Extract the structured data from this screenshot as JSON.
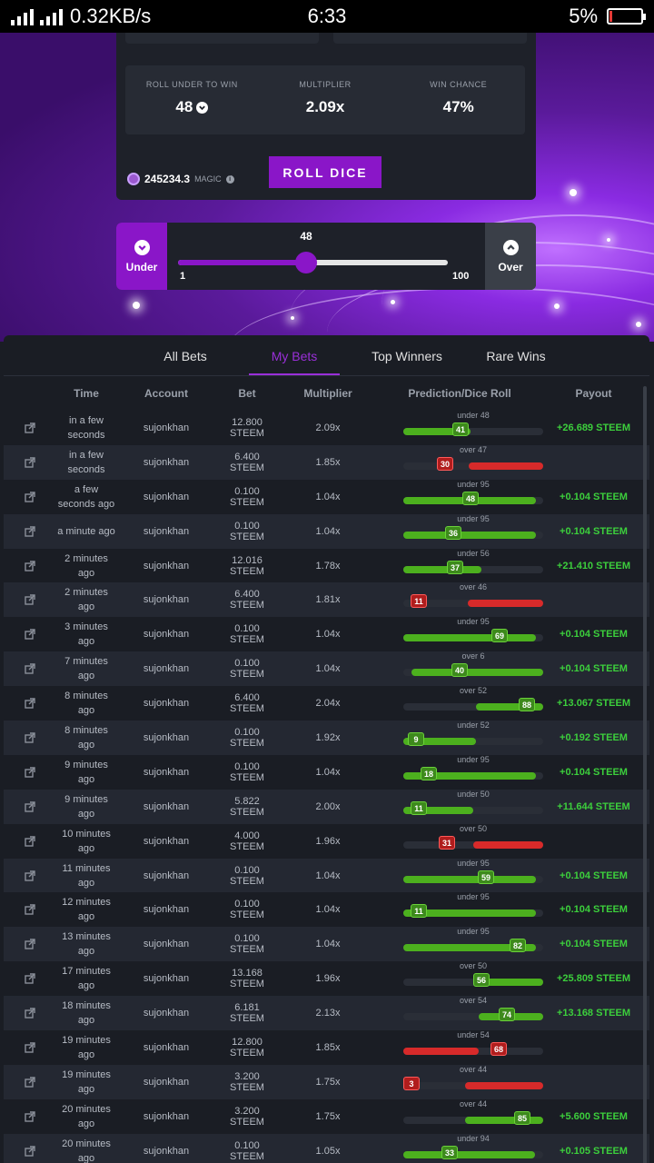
{
  "status_bar": {
    "speed": "0.32KB/s",
    "time": "6:33",
    "battery": "5%"
  },
  "game": {
    "roll_under_label": "ROLL UNDER TO WIN",
    "roll_under_value": "48",
    "multiplier_label": "MULTIPLIER",
    "multiplier_value": "2.09x",
    "win_chance_label": "WIN CHANCE",
    "win_chance_value": "47%",
    "balance": "245234.3",
    "balance_unit": "MAGIC",
    "roll_button": "ROLL DICE"
  },
  "slider": {
    "under_label": "Under",
    "over_label": "Over",
    "value": 48,
    "value_label": "48",
    "min_label": "1",
    "max_label": "100",
    "min": 1,
    "max": 100
  },
  "tabs": [
    "All Bets",
    "My Bets",
    "Top Winners",
    "Rare Wins"
  ],
  "active_tab": 1,
  "columns": [
    "Time",
    "Account",
    "Bet",
    "Multiplier",
    "Prediction/Dice Roll",
    "Payout"
  ],
  "rows": [
    {
      "time": "in a few seconds",
      "account": "sujonkhan",
      "bet": "12.800 STEEM",
      "mult": "2.09x",
      "pred": "under 48",
      "dir": "under",
      "target": 48,
      "roll": 41,
      "win": true,
      "payout": "+26.689 STEEM"
    },
    {
      "time": "in a few seconds",
      "account": "sujonkhan",
      "bet": "6.400 STEEM",
      "mult": "1.85x",
      "pred": "over 47",
      "dir": "over",
      "target": 47,
      "roll": 30,
      "win": false,
      "payout": ""
    },
    {
      "time": "a few seconds ago",
      "account": "sujonkhan",
      "bet": "0.100 STEEM",
      "mult": "1.04x",
      "pred": "under 95",
      "dir": "under",
      "target": 95,
      "roll": 48,
      "win": true,
      "payout": "+0.104 STEEM"
    },
    {
      "time": "a minute ago",
      "account": "sujonkhan",
      "bet": "0.100 STEEM",
      "mult": "1.04x",
      "pred": "under 95",
      "dir": "under",
      "target": 95,
      "roll": 36,
      "win": true,
      "payout": "+0.104 STEEM"
    },
    {
      "time": "2 minutes ago",
      "account": "sujonkhan",
      "bet": "12.016 STEEM",
      "mult": "1.78x",
      "pred": "under 56",
      "dir": "under",
      "target": 56,
      "roll": 37,
      "win": true,
      "payout": "+21.410 STEEM"
    },
    {
      "time": "2 minutes ago",
      "account": "sujonkhan",
      "bet": "6.400 STEEM",
      "mult": "1.81x",
      "pred": "over 46",
      "dir": "over",
      "target": 46,
      "roll": 11,
      "win": false,
      "payout": ""
    },
    {
      "time": "3 minutes ago",
      "account": "sujonkhan",
      "bet": "0.100 STEEM",
      "mult": "1.04x",
      "pred": "under 95",
      "dir": "under",
      "target": 95,
      "roll": 69,
      "win": true,
      "payout": "+0.104 STEEM"
    },
    {
      "time": "7 minutes ago",
      "account": "sujonkhan",
      "bet": "0.100 STEEM",
      "mult": "1.04x",
      "pred": "over 6",
      "dir": "over",
      "target": 6,
      "roll": 40,
      "win": true,
      "payout": "+0.104 STEEM"
    },
    {
      "time": "8 minutes ago",
      "account": "sujonkhan",
      "bet": "6.400 STEEM",
      "mult": "2.04x",
      "pred": "over 52",
      "dir": "over",
      "target": 52,
      "roll": 88,
      "win": true,
      "payout": "+13.067 STEEM"
    },
    {
      "time": "8 minutes ago",
      "account": "sujonkhan",
      "bet": "0.100 STEEM",
      "mult": "1.92x",
      "pred": "under 52",
      "dir": "under",
      "target": 52,
      "roll": 9,
      "win": true,
      "payout": "+0.192 STEEM"
    },
    {
      "time": "9 minutes ago",
      "account": "sujonkhan",
      "bet": "0.100 STEEM",
      "mult": "1.04x",
      "pred": "under 95",
      "dir": "under",
      "target": 95,
      "roll": 18,
      "win": true,
      "payout": "+0.104 STEEM"
    },
    {
      "time": "9 minutes ago",
      "account": "sujonkhan",
      "bet": "5.822 STEEM",
      "mult": "2.00x",
      "pred": "under 50",
      "dir": "under",
      "target": 50,
      "roll": 11,
      "win": true,
      "payout": "+11.644 STEEM"
    },
    {
      "time": "10 minutes ago",
      "account": "sujonkhan",
      "bet": "4.000 STEEM",
      "mult": "1.96x",
      "pred": "over 50",
      "dir": "over",
      "target": 50,
      "roll": 31,
      "win": false,
      "payout": ""
    },
    {
      "time": "11 minutes ago",
      "account": "sujonkhan",
      "bet": "0.100 STEEM",
      "mult": "1.04x",
      "pred": "under 95",
      "dir": "under",
      "target": 95,
      "roll": 59,
      "win": true,
      "payout": "+0.104 STEEM"
    },
    {
      "time": "12 minutes ago",
      "account": "sujonkhan",
      "bet": "0.100 STEEM",
      "mult": "1.04x",
      "pred": "under 95",
      "dir": "under",
      "target": 95,
      "roll": 11,
      "win": true,
      "payout": "+0.104 STEEM"
    },
    {
      "time": "13 minutes ago",
      "account": "sujonkhan",
      "bet": "0.100 STEEM",
      "mult": "1.04x",
      "pred": "under 95",
      "dir": "under",
      "target": 95,
      "roll": 82,
      "win": true,
      "payout": "+0.104 STEEM"
    },
    {
      "time": "17 minutes ago",
      "account": "sujonkhan",
      "bet": "13.168 STEEM",
      "mult": "1.96x",
      "pred": "over 50",
      "dir": "over",
      "target": 50,
      "roll": 56,
      "win": true,
      "payout": "+25.809 STEEM"
    },
    {
      "time": "18 minutes ago",
      "account": "sujonkhan",
      "bet": "6.181 STEEM",
      "mult": "2.13x",
      "pred": "over 54",
      "dir": "over",
      "target": 54,
      "roll": 74,
      "win": true,
      "payout": "+13.168 STEEM"
    },
    {
      "time": "19 minutes ago",
      "account": "sujonkhan",
      "bet": "12.800 STEEM",
      "mult": "1.85x",
      "pred": "under 54",
      "dir": "under",
      "target": 54,
      "roll": 68,
      "win": false,
      "payout": ""
    },
    {
      "time": "19 minutes ago",
      "account": "sujonkhan",
      "bet": "3.200 STEEM",
      "mult": "1.75x",
      "pred": "over 44",
      "dir": "over",
      "target": 44,
      "roll": 3,
      "win": false,
      "payout": ""
    },
    {
      "time": "20 minutes ago",
      "account": "sujonkhan",
      "bet": "3.200 STEEM",
      "mult": "1.75x",
      "pred": "over 44",
      "dir": "over",
      "target": 44,
      "roll": 85,
      "win": true,
      "payout": "+5.600 STEEM"
    },
    {
      "time": "20 minutes ago",
      "account": "sujonkhan",
      "bet": "0.100 STEEM",
      "mult": "1.05x",
      "pred": "under 94",
      "dir": "under",
      "target": 94,
      "roll": 33,
      "win": true,
      "payout": "+0.105 STEEM"
    }
  ],
  "colors": {
    "accent": "#8a16c8",
    "win": "#4cb01e",
    "lose": "#d72a2a",
    "payout": "#3ccf3c"
  },
  "icons": {
    "chevron_down": "chevron-down-icon",
    "chevron_up": "chevron-up-icon",
    "external_link": "external-link-icon",
    "info": "info-icon",
    "coin": "magic-coin-icon"
  }
}
